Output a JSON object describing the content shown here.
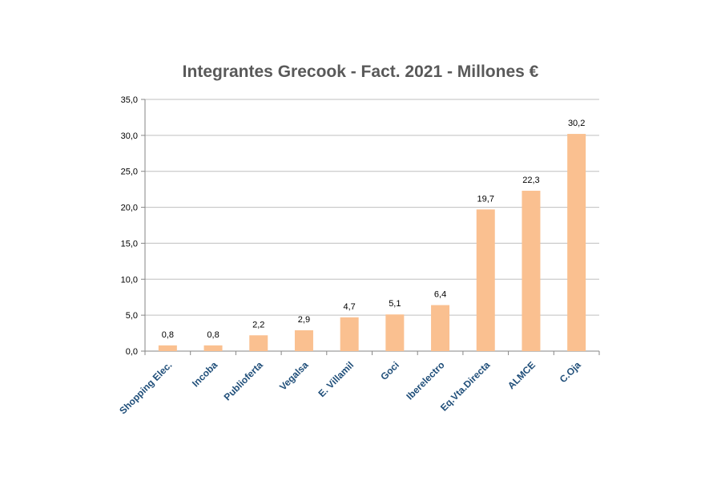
{
  "chart_data": {
    "type": "bar",
    "title": "Integrantes Grecook - Fact. 2021 - Millones €",
    "categories": [
      "Shopping Elec.",
      "Incoba",
      "Publioferta",
      "Vegalsa",
      "E. Villamil",
      "Goci",
      "Iberelectro",
      "Eq.Vta.Directa",
      "ALMCE",
      "C.Oja"
    ],
    "values": [
      0.8,
      0.8,
      2.2,
      2.9,
      4.7,
      5.1,
      6.4,
      19.7,
      22.3,
      30.2
    ],
    "value_labels": [
      "0,8",
      "0,8",
      "2,2",
      "2,9",
      "4,7",
      "5,1",
      "6,4",
      "19,7",
      "22,3",
      "30,2"
    ],
    "yticks": [
      "0,0",
      "5,0",
      "10,0",
      "15,0",
      "20,0",
      "25,0",
      "30,0",
      "35,0"
    ],
    "ylim": [
      0,
      35
    ],
    "ystep": 5,
    "grid": true,
    "legend": "none",
    "bar_color": "#fac090",
    "grid_color": "#bfbfbf",
    "xlabel": "",
    "ylabel": ""
  }
}
